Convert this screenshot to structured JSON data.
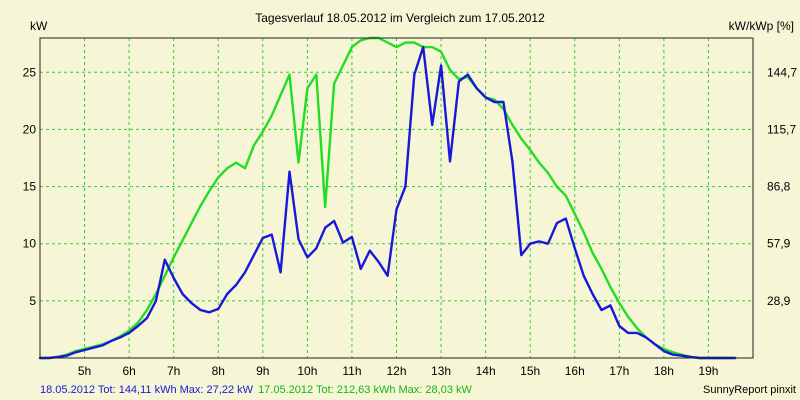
{
  "chart_data": {
    "type": "line",
    "title": "Tagesverlauf 18.05.2012 im Vergleich zum 17.05.2012",
    "ylabel_left": "kW",
    "ylabel_right": "kW/kWp [%]",
    "x_range": [
      4.0,
      20.0
    ],
    "ylim": [
      0,
      28
    ],
    "grid": true,
    "x_ticks": [
      {
        "x": 5,
        "label": "5h"
      },
      {
        "x": 6,
        "label": "6h"
      },
      {
        "x": 7,
        "label": "7h"
      },
      {
        "x": 8,
        "label": "8h"
      },
      {
        "x": 9,
        "label": "9h"
      },
      {
        "x": 10,
        "label": "10h"
      },
      {
        "x": 11,
        "label": "11h"
      },
      {
        "x": 12,
        "label": "12h"
      },
      {
        "x": 13,
        "label": "13h"
      },
      {
        "x": 14,
        "label": "14h"
      },
      {
        "x": 15,
        "label": "15h"
      },
      {
        "x": 16,
        "label": "16h"
      },
      {
        "x": 17,
        "label": "17h"
      },
      {
        "x": 18,
        "label": "18h"
      },
      {
        "x": 19,
        "label": "19h"
      }
    ],
    "y_ticks_left": [
      {
        "y": 5,
        "label": "5"
      },
      {
        "y": 10,
        "label": "10"
      },
      {
        "y": 15,
        "label": "15"
      },
      {
        "y": 20,
        "label": "20"
      },
      {
        "y": 25,
        "label": "25"
      }
    ],
    "y_ticks_right": [
      {
        "y": 5,
        "label": "28,9"
      },
      {
        "y": 10,
        "label": "57,9"
      },
      {
        "y": 15,
        "label": "86,8"
      },
      {
        "y": 20,
        "label": "115,7"
      },
      {
        "y": 25,
        "label": "144,7"
      }
    ],
    "series": [
      {
        "name": "17.05.2012",
        "color": "#22dd22",
        "x": [
          4.0,
          4.2,
          4.4,
          4.6,
          4.8,
          5.0,
          5.2,
          5.4,
          5.6,
          5.8,
          6.0,
          6.2,
          6.4,
          6.6,
          6.8,
          7.0,
          7.2,
          7.4,
          7.6,
          7.8,
          8.0,
          8.2,
          8.4,
          8.6,
          8.8,
          9.0,
          9.2,
          9.4,
          9.6,
          9.8,
          10.0,
          10.2,
          10.4,
          10.6,
          10.8,
          11.0,
          11.2,
          11.4,
          11.6,
          11.8,
          12.0,
          12.2,
          12.4,
          12.6,
          12.8,
          13.0,
          13.2,
          13.4,
          13.6,
          13.8,
          14.0,
          14.2,
          14.4,
          14.6,
          14.8,
          15.0,
          15.2,
          15.4,
          15.6,
          15.8,
          16.0,
          16.2,
          16.4,
          16.6,
          16.8,
          17.0,
          17.2,
          17.4,
          17.6,
          17.8,
          18.0,
          18.2,
          18.4,
          18.6,
          18.8,
          19.0,
          19.2,
          19.4,
          19.6
        ],
        "values": [
          0,
          0,
          0.1,
          0.3,
          0.6,
          0.8,
          1.0,
          1.2,
          1.5,
          1.9,
          2.4,
          3.1,
          4.2,
          5.6,
          7.2,
          8.8,
          10.3,
          11.8,
          13.3,
          14.6,
          15.8,
          16.6,
          17.1,
          16.6,
          18.6,
          19.8,
          21.2,
          23.0,
          24.8,
          17.1,
          23.6,
          24.8,
          13.2,
          24.0,
          25.6,
          27.2,
          27.8,
          28.0,
          28.0,
          27.6,
          27.2,
          27.6,
          27.6,
          27.2,
          27.2,
          26.8,
          25.2,
          24.4,
          24.6,
          23.6,
          22.8,
          22.6,
          21.8,
          20.4,
          19.2,
          18.2,
          17.1,
          16.2,
          15.0,
          14.2,
          12.6,
          11.0,
          9.2,
          7.8,
          6.2,
          4.8,
          3.6,
          2.6,
          1.8,
          1.2,
          0.8,
          0.5,
          0.3,
          0.1,
          0,
          0,
          0,
          0,
          0
        ]
      },
      {
        "name": "18.05.2012",
        "color": "#1818d8",
        "x": [
          4.0,
          4.2,
          4.4,
          4.6,
          4.8,
          5.0,
          5.2,
          5.4,
          5.6,
          5.8,
          6.0,
          6.2,
          6.4,
          6.6,
          6.8,
          7.0,
          7.2,
          7.4,
          7.6,
          7.8,
          8.0,
          8.2,
          8.4,
          8.6,
          8.8,
          9.0,
          9.2,
          9.4,
          9.6,
          9.8,
          10.0,
          10.2,
          10.4,
          10.6,
          10.8,
          11.0,
          11.2,
          11.4,
          11.6,
          11.8,
          12.0,
          12.2,
          12.4,
          12.6,
          12.8,
          13.0,
          13.2,
          13.4,
          13.6,
          13.8,
          14.0,
          14.2,
          14.4,
          14.6,
          14.8,
          15.0,
          15.2,
          15.4,
          15.6,
          15.8,
          16.0,
          16.2,
          16.4,
          16.6,
          16.8,
          17.0,
          17.2,
          17.4,
          17.6,
          17.8,
          18.0,
          18.2,
          18.4,
          18.6,
          18.8,
          19.0,
          19.2,
          19.4,
          19.6
        ],
        "values": [
          0,
          0,
          0.1,
          0.2,
          0.5,
          0.7,
          0.9,
          1.1,
          1.5,
          1.8,
          2.2,
          2.8,
          3.5,
          5.0,
          8.6,
          7.0,
          5.6,
          4.8,
          4.2,
          4.0,
          4.3,
          5.6,
          6.4,
          7.5,
          9.0,
          10.5,
          10.8,
          7.5,
          16.3,
          10.4,
          8.8,
          9.6,
          11.4,
          12.0,
          10.1,
          10.6,
          7.8,
          9.4,
          8.4,
          7.2,
          13.0,
          15.0,
          24.8,
          27.2,
          20.4,
          25.6,
          17.2,
          24.2,
          24.8,
          23.6,
          22.8,
          22.4,
          22.4,
          17.2,
          9.0,
          10.0,
          10.2,
          10.0,
          11.8,
          12.2,
          9.6,
          7.2,
          5.6,
          4.2,
          4.6,
          2.8,
          2.2,
          2.2,
          1.8,
          1.2,
          0.6,
          0.3,
          0.2,
          0.1,
          0,
          0,
          0,
          0,
          0
        ]
      }
    ]
  },
  "footer": {
    "series1_text": "18.05.2012 Tot: 144,11 kWh Max: 27,22 kW",
    "series2_text": "17.05.2012 Tot: 212,63 kWh Max: 28,03 kW",
    "credit": "SunnyReport pinxit"
  }
}
